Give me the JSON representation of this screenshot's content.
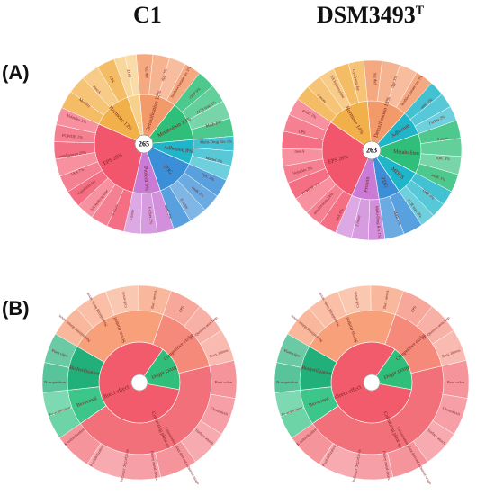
{
  "columns": [
    "C1",
    "DSM3493",
    "T"
  ],
  "panels": [
    "(A)",
    "(B)"
  ],
  "chart_data": [
    {
      "type": "sunburst",
      "panel": "A",
      "column": "C1",
      "center": "265",
      "inner": [
        {
          "name": "Detoxification",
          "value": 12,
          "label": "Detoxification 12%"
        },
        {
          "name": "Metabolism",
          "value": 13,
          "label": "Metabolism 13%"
        },
        {
          "name": "Adhesion",
          "value": 8,
          "label": "Adhesion 8%"
        },
        {
          "name": "ZDG",
          "value": 13,
          "label": "ZDG"
        },
        {
          "name": "Protein",
          "value": 9,
          "label": "Protein 9%"
        },
        {
          "name": "EPS",
          "value": 28,
          "label": "EPS 28%"
        },
        {
          "name": "Hormone",
          "value": 13,
          "label": "Hormone 13%"
        },
        {
          "name": "other",
          "value": 4,
          "label": ""
        }
      ],
      "outer_labels": [
        "pip 5%",
        "dpp 3%",
        "Isothiocyanate res 3%",
        "OEP 5%",
        "ACR tran 3%",
        "MatE 2%",
        "Multi-Drug Res 1%",
        "Mattol 3%",
        "trpC 3%",
        "anaK 2%",
        "8 more",
        "antC 2%",
        "I scher 2%",
        "5 more",
        "2 more",
        "SA hydroxylase",
        "Cytokinin fer",
        "IAA 7%",
        "amylovoran 25%",
        "PCWDE 1%",
        "Volatiles 3%",
        "Motility",
        "moeA",
        "LPS",
        "ZDG"
      ]
    },
    {
      "type": "sunburst",
      "panel": "A",
      "column": "DSM3493T",
      "center": "263",
      "inner": [
        {
          "name": "Detoxification",
          "value": 13,
          "label": "Detoxification 13%"
        },
        {
          "name": "Adhesion",
          "value": 8,
          "label": "Adhesion"
        },
        {
          "name": "Metabolism",
          "value": 13,
          "label": "Metabolism"
        },
        {
          "name": "MDRS",
          "value": 8,
          "label": "MDRS"
        },
        {
          "name": "ZDG",
          "value": 7,
          "label": "ZDG"
        },
        {
          "name": "Protein",
          "value": 9,
          "label": "Protein"
        },
        {
          "name": "EPS",
          "value": 28,
          "label": "EPS 28%"
        },
        {
          "name": "Hormone",
          "value": 14,
          "label": "Hormone 14%"
        }
      ],
      "outer_labels": [
        "pip 5%",
        "dpp 3%",
        "Isothiocyanate res 3%",
        "antC 2%",
        "I scher 2%",
        "5 more",
        "trpC 3%",
        "anaK 1%",
        "OEP 3%",
        "ACR tran 3%",
        "MatE 1%",
        "Multi-Drug Res 1%",
        "2 more",
        "IAA 6%",
        "amylovoran 24%",
        "PCWDE 1%",
        "Volatiles 3%",
        "moeA",
        "LPS",
        "gadD 2%",
        "3 more",
        "SA hydroxylase",
        "Cytokinin fer"
      ]
    },
    {
      "type": "sunburst",
      "panel": "B",
      "column": "C1",
      "inner": [
        {
          "name": "Indirect effect",
          "value": 82,
          "label": "Indirect effect"
        },
        {
          "name": "Direct effect",
          "value": 18,
          "label": "Direct effect"
        }
      ],
      "middle": [
        {
          "name": "Stress control",
          "value": 22,
          "label": "Stress control"
        },
        {
          "name": "Competitive exclusion",
          "value": 16,
          "label": "Competitive exclusion"
        },
        {
          "name": "Colonizing plant system",
          "value": 44,
          "label": "Colonizing plant system"
        },
        {
          "name": "Bio-remediation",
          "value": 8,
          "label": "Bio-remed"
        },
        {
          "name": "Biofertilization",
          "value": 10,
          "label": "Biofertilization"
        }
      ],
      "outer_labels": [
        "Neutralizing abiotic stress",
        "Neutralizing biotic stress",
        "Cell envel.",
        "Bact. secret.",
        "EPS",
        "CE-Quorum sens.resp.",
        "Bact. fitness",
        "Root colon.",
        "Chemotaxis",
        "Surface attach",
        "Colonization plant derived substrate usage",
        "Heavy metal detox.",
        "Pollutant degradation",
        "P-solubilization",
        "K-solubilization",
        "Fe-acquisition",
        "N-acquisition",
        "Plant vigor"
      ]
    },
    {
      "type": "sunburst",
      "panel": "B",
      "column": "DSM3493T",
      "inner": [
        {
          "name": "Indirect effect",
          "value": 82,
          "label": "Indirect effect"
        },
        {
          "name": "Direct effect",
          "value": 18,
          "label": "Direct effect"
        }
      ],
      "middle": [
        {
          "name": "Stress control",
          "value": 22,
          "label": "Stress control"
        },
        {
          "name": "Competitive exclusion",
          "value": 16,
          "label": "Competitive exclusion"
        },
        {
          "name": "Colonizing plant system",
          "value": 44,
          "label": "Colonizing plant system"
        },
        {
          "name": "Bio-remediation",
          "value": 8,
          "label": "Bio-remed"
        },
        {
          "name": "Biofertilization",
          "value": 10,
          "label": "Biofertilization"
        }
      ],
      "outer_labels": [
        "Neutralizing abiotic stress",
        "Neutralizing biotic stress",
        "Cell envel.",
        "Bact. secret.",
        "EPS",
        "CE-Quorum sens.resp.",
        "Bact. fitness",
        "Root colon.",
        "Chemotaxis",
        "Surface attach",
        "Colonization plant derived substrate usage",
        "Heavy metal detox.",
        "Pollutant degradation",
        "P-solubilization",
        "K-solubilization",
        "Fe-acquisition",
        "N-acquisition",
        "Plant vigor"
      ]
    }
  ]
}
